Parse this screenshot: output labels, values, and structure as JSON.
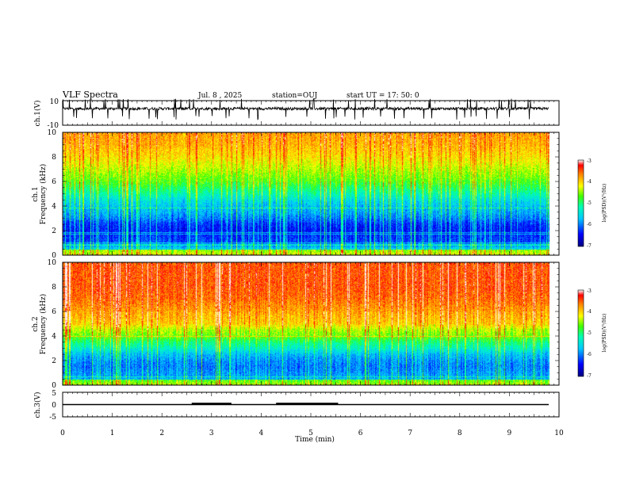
{
  "header": {
    "title": "VLF Spectra",
    "date": "Jul. 8 , 2025",
    "station": "station=OUJ",
    "start_ut": "start UT = 17: 50: 0"
  },
  "chart_data": [
    {
      "type": "line",
      "panel": "ch1-waveform",
      "ylabel": "ch.1(V)",
      "ylim": [
        -10,
        10
      ],
      "yticks": [
        "10",
        "-10"
      ],
      "xlim": [
        0,
        10
      ],
      "baseline_v": 3.5,
      "note_values": "dense noisy waveform with frequent short spikes"
    },
    {
      "type": "heatmap",
      "panel": "ch1-spectrogram",
      "ylabel": "ch.1\nFrequency (kHz)",
      "ylim": [
        0,
        10
      ],
      "yticks": [
        "0",
        "2",
        "4",
        "6",
        "8",
        "10"
      ],
      "xlim": [
        0,
        9.83
      ],
      "colorbar": {
        "label": "log(PSD)(V²/Hz)",
        "ticks": [
          "-3",
          "-4",
          "-5",
          "-6",
          "-7"
        ],
        "range": [
          -7,
          -3
        ]
      },
      "level_profile": [
        [
          0,
          -5.3
        ],
        [
          0.5,
          -5.6
        ],
        [
          1,
          -6.2
        ],
        [
          1.5,
          -6.3
        ],
        [
          2,
          -6.4
        ],
        [
          2.5,
          -6.3
        ],
        [
          3,
          -6.0
        ],
        [
          3.5,
          -5.8
        ],
        [
          4,
          -5.7
        ],
        [
          4.5,
          -5.5
        ],
        [
          5,
          -5.2
        ],
        [
          6,
          -4.7
        ],
        [
          7,
          -4.4
        ],
        [
          8,
          -4.1
        ],
        [
          9,
          -3.9
        ],
        [
          10,
          -3.8
        ]
      ]
    },
    {
      "type": "heatmap",
      "panel": "ch2-spectrogram",
      "ylabel": "ch.2\nFrequency (kHz)",
      "ylim": [
        0,
        10
      ],
      "yticks": [
        "0",
        "2",
        "4",
        "6",
        "8",
        "10"
      ],
      "xlim": [
        0,
        9.83
      ],
      "colorbar": {
        "label": "log(PSD)(V²/Hz)",
        "ticks": [
          "-3",
          "-4",
          "-5",
          "-6",
          "-7"
        ],
        "range": [
          -7,
          -3
        ]
      },
      "level_profile": [
        [
          0,
          -5.4
        ],
        [
          0.5,
          -5.8
        ],
        [
          1,
          -5.9
        ],
        [
          1.5,
          -6.0
        ],
        [
          2,
          -5.9
        ],
        [
          2.5,
          -5.7
        ],
        [
          3,
          -5.3
        ],
        [
          3.5,
          -5.0
        ],
        [
          4,
          -4.6
        ],
        [
          4.5,
          -4.4
        ],
        [
          5,
          -4.0
        ],
        [
          6,
          -3.8
        ],
        [
          7,
          -3.6
        ],
        [
          8,
          -3.5
        ],
        [
          9,
          -3.5
        ],
        [
          10,
          -3.5
        ]
      ]
    },
    {
      "type": "line",
      "panel": "ch3-waveform",
      "ylabel": "ch.3(V)",
      "ylim": [
        -5,
        5
      ],
      "yticks": [
        "5",
        "0",
        "-5"
      ],
      "xlim": [
        0,
        10
      ],
      "baseline_v": 0,
      "step_segments": [
        {
          "start_min": 2.6,
          "end_min": 3.4,
          "value_v": 0.35
        },
        {
          "start_min": 4.3,
          "end_min": 5.55,
          "value_v": 0.35
        }
      ],
      "xticks": [
        "0",
        "1",
        "2",
        "3",
        "4",
        "5",
        "6",
        "7",
        "8",
        "9",
        "10"
      ],
      "xlabel": "Time (min)"
    }
  ]
}
